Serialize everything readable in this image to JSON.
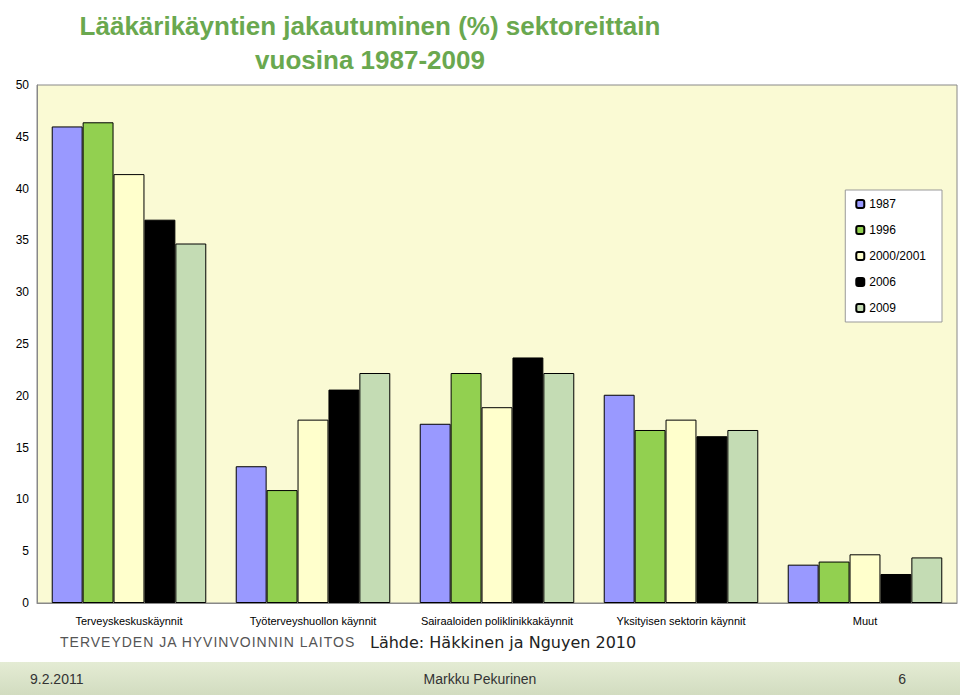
{
  "chart_data": {
    "type": "bar",
    "title": "Lääkärikäyntien jakautuminen (%) sektoreittain\nvuosina 1987-2009",
    "categories": [
      "Terveyskeskuskäynnit",
      "Työterveyshuollon käynnit",
      "Sairaaloiden poliklinikkakäynnit",
      "Yksityisen sektorin käynnit",
      "Muut"
    ],
    "series": [
      {
        "name": "1987",
        "color": "#9999ff",
        "values": [
          46.0,
          13.2,
          17.3,
          20.1,
          3.7
        ]
      },
      {
        "name": "1996",
        "color": "#92d050",
        "values": [
          46.4,
          10.9,
          22.2,
          16.7,
          4.0
        ]
      },
      {
        "name": "2000/2001",
        "color": "#ffffcc",
        "values": [
          41.4,
          17.7,
          18.9,
          17.7,
          4.7
        ]
      },
      {
        "name": "2006",
        "color": "#000000",
        "values": [
          37.0,
          20.6,
          23.7,
          16.1,
          2.8
        ]
      },
      {
        "name": "2009",
        "color": "#c4dcb4",
        "values": [
          34.7,
          22.2,
          22.2,
          16.7,
          4.4
        ]
      }
    ],
    "ylim": [
      0,
      50
    ],
    "yticks": [
      0,
      5,
      10,
      15,
      20,
      25,
      30,
      35,
      40,
      45,
      50
    ],
    "grid": false,
    "legend": "upper right",
    "data_labels": false
  },
  "footer": {
    "organization": "TERVEYDEN JA HYVINVOINNIN LAITOS",
    "source": "Lähde: Häkkinen ja Nguyen 2010",
    "date": "9.2.2011",
    "author": "Markku Pekurinen",
    "page": 6
  }
}
